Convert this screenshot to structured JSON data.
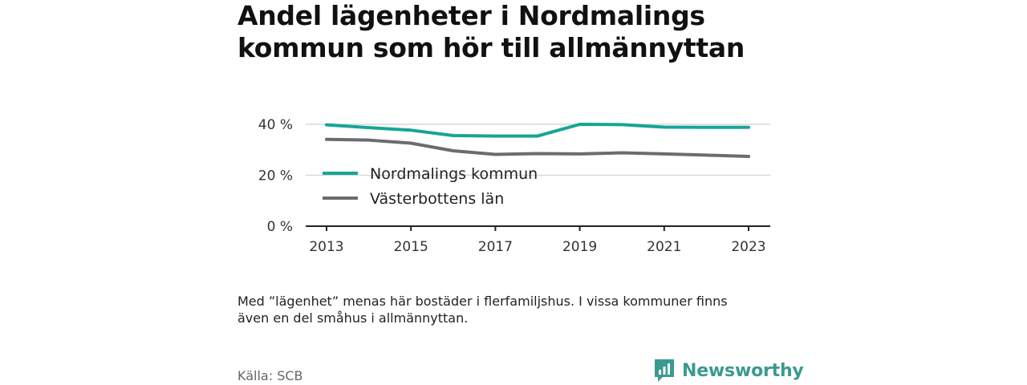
{
  "chart_data": {
    "type": "line",
    "title_lines": [
      "Andel lägenheter i Nordmalings",
      "kommun som hör till allmännyttan"
    ],
    "x": [
      2013,
      2014,
      2015,
      2016,
      2017,
      2018,
      2019,
      2020,
      2021,
      2022,
      2023
    ],
    "x_tick_values": [
      2013,
      2015,
      2017,
      2019,
      2021,
      2023
    ],
    "x_tick_labels": [
      "2013",
      "2015",
      "2017",
      "2019",
      "2021",
      "2023"
    ],
    "y_tick_values": [
      0,
      20,
      40
    ],
    "y_tick_labels": [
      "0 %",
      "20 %",
      "40 %"
    ],
    "xlim": [
      2013,
      2023
    ],
    "ylim": [
      0,
      40
    ],
    "grid": true,
    "legend_position": "inside-left",
    "series": [
      {
        "name": "Nordmalings kommun",
        "color": "#16a596",
        "values": [
          39.8,
          38.7,
          37.7,
          35.6,
          35.4,
          35.4,
          40.0,
          39.9,
          38.9,
          38.8,
          38.8
        ]
      },
      {
        "name": "Västerbottens län",
        "color": "#6c6c70",
        "values": [
          34.1,
          33.8,
          32.6,
          29.6,
          28.2,
          28.5,
          28.4,
          28.8,
          28.4,
          27.9,
          27.4
        ]
      }
    ]
  },
  "note_lines": [
    "Med ”lägenhet” menas här bostäder i flerfamiljshus. I vissa kommuner finns",
    "även en del småhus i allmännyttan."
  ],
  "source": "Källa: SCB",
  "logo": {
    "text": "Newsworthy",
    "icon": "newsworthy-logo-icon",
    "color": "#3a9a90"
  }
}
